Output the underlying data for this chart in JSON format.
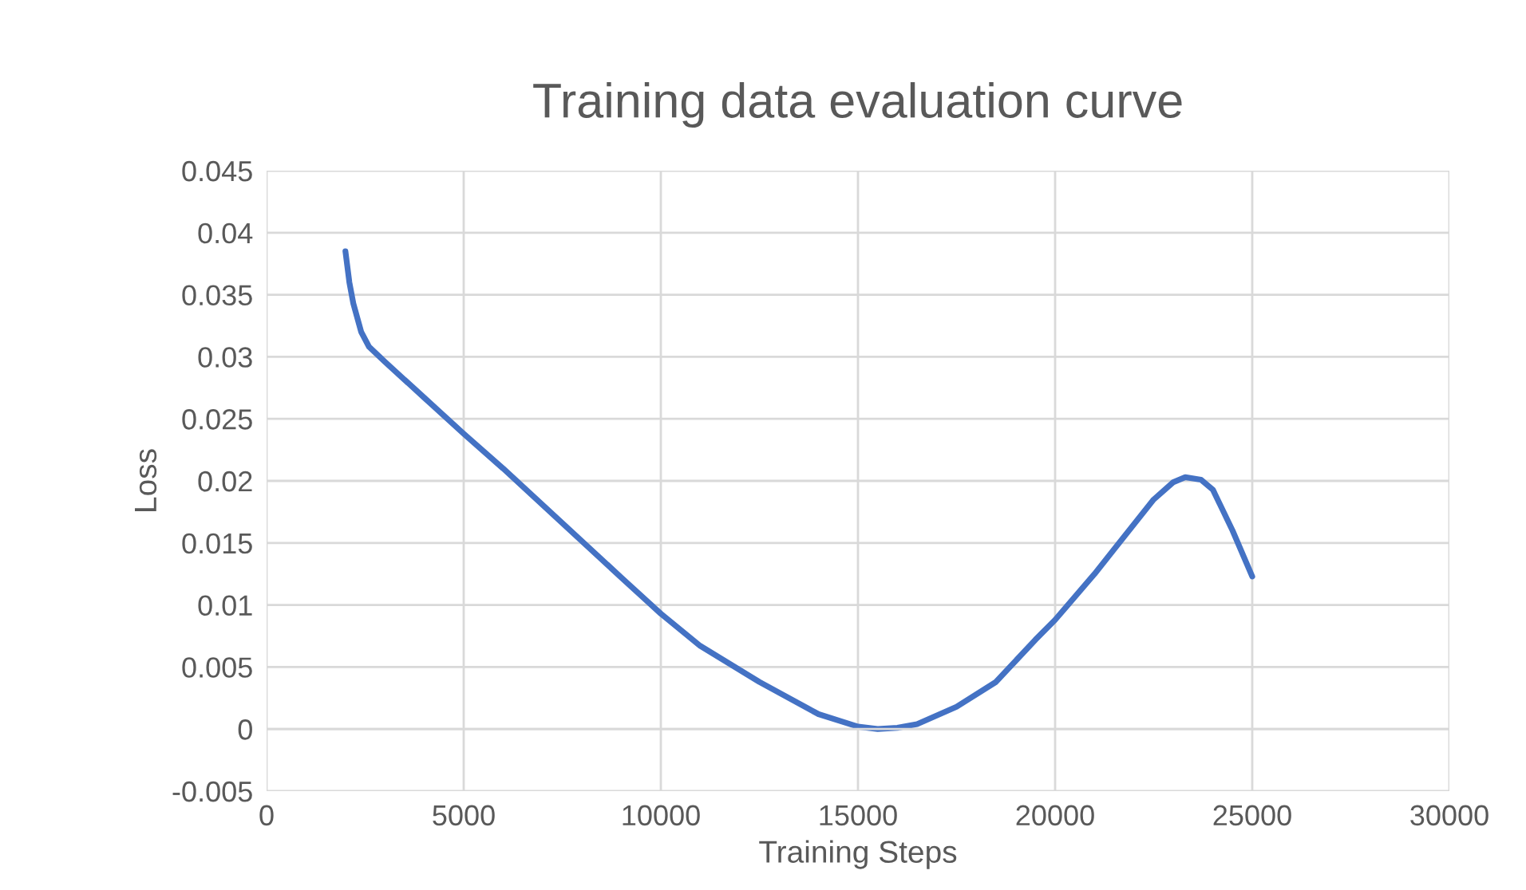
{
  "chart_data": {
    "type": "line",
    "title": "Training data evaluation curve",
    "xlabel": "Training Steps",
    "ylabel": "Loss",
    "x": [
      2000,
      2100,
      2200,
      2400,
      2600,
      3000,
      4000,
      5000,
      6000,
      7500,
      9000,
      10000,
      11000,
      12500,
      14000,
      15000,
      15500,
      16000,
      16500,
      17500,
      18500,
      19500,
      20000,
      21000,
      21500,
      22500,
      23000,
      23300,
      23700,
      24000,
      24500,
      25000
    ],
    "series": [
      {
        "color": "#4472c4",
        "values": [
          0.0385,
          0.036,
          0.0343,
          0.032,
          0.0308,
          0.0296,
          0.0267,
          0.0238,
          0.021,
          0.0166,
          0.0122,
          0.0093,
          0.0067,
          0.0038,
          0.0012,
          0.0002,
          0.0,
          0.0001,
          0.0004,
          0.0018,
          0.0038,
          0.0072,
          0.0088,
          0.0125,
          0.0145,
          0.0185,
          0.0199,
          0.0203,
          0.0201,
          0.0193,
          0.016,
          0.0123
        ]
      }
    ],
    "xlim": [
      0,
      30000
    ],
    "xticks": [
      0,
      5000,
      10000,
      15000,
      20000,
      25000,
      30000
    ],
    "ylim": [
      -0.005,
      0.045
    ],
    "yticks": [
      -0.005,
      0,
      0.005,
      0.01,
      0.015,
      0.02,
      0.025,
      0.03,
      0.035,
      0.04,
      0.045
    ],
    "grid": true,
    "marker": "none",
    "line_style": "solid"
  }
}
